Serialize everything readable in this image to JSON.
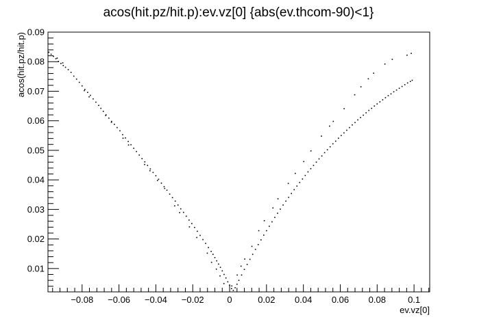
{
  "chart_data": {
    "type": "scatter",
    "title": "acos(hit.pz/hit.p):ev.vz[0] {abs(ev.thcom-90)<1}",
    "xlabel": "ev.vz[0]",
    "ylabel": "acos(hit.pz/hit.p)",
    "xlim": [
      -0.0985,
      0.1085
    ],
    "ylim": [
      0.0021,
      0.09
    ],
    "x_ticks": [
      -0.08,
      -0.06,
      -0.04,
      -0.02,
      0,
      0.02,
      0.04,
      0.06,
      0.08,
      0.1
    ],
    "x_tick_labels": [
      "−0.08",
      "−0.06",
      "−0.04",
      "−0.02",
      "0",
      "0.02",
      "0.04",
      "0.06",
      "0.08",
      "0.1"
    ],
    "y_ticks": [
      0.01,
      0.02,
      0.03,
      0.04,
      0.05,
      0.06,
      0.07,
      0.08,
      0.09
    ],
    "y_tick_labels": [
      "0.01",
      "0.02",
      "0.03",
      "0.04",
      "0.05",
      "0.06",
      "0.07",
      "0.08",
      "0.09"
    ],
    "grid": false,
    "legend": "none",
    "marker_color": "#000000",
    "series": [
      {
        "x": [
          -0.098,
          -0.0968,
          -0.0955,
          -0.0942,
          -0.0928,
          -0.0915,
          -0.0902,
          -0.089,
          -0.0875,
          -0.086,
          -0.0845,
          -0.083,
          -0.0815,
          -0.08,
          -0.0785,
          -0.077,
          -0.0755,
          -0.074,
          -0.0725,
          -0.071,
          -0.0698,
          -0.0685,
          -0.067,
          -0.0655,
          -0.064,
          -0.0625,
          -0.061,
          -0.0595,
          -0.058,
          -0.0565,
          -0.055,
          -0.0535,
          -0.052,
          -0.0505,
          -0.049,
          -0.0475,
          -0.046,
          -0.0445,
          -0.043,
          -0.0415,
          -0.04,
          -0.0385,
          -0.037,
          -0.0355,
          -0.034,
          -0.0325,
          -0.031,
          -0.0295,
          -0.028,
          -0.0265,
          -0.025,
          -0.0235,
          -0.022,
          -0.0205,
          -0.019,
          -0.0175,
          -0.016,
          -0.0145,
          -0.013,
          -0.0115,
          -0.01,
          -0.009,
          -0.008,
          -0.007,
          -0.006,
          -0.005,
          -0.004,
          -0.003,
          -0.002,
          -0.001,
          0.0,
          0.001,
          0.002,
          0.003,
          0.004,
          0.005,
          0.0065,
          0.008,
          0.0095,
          0.011,
          0.0125,
          0.014,
          0.0155,
          0.017,
          0.0185,
          0.02,
          0.0215,
          0.023,
          0.0245,
          0.026,
          0.0275,
          0.029,
          0.0305,
          0.032,
          0.0335,
          0.035,
          0.0365,
          0.038,
          0.0395,
          0.041,
          0.0425,
          0.044,
          0.0455,
          0.047,
          0.0485,
          0.05,
          0.0515,
          0.053,
          0.0545,
          0.056,
          0.0575,
          0.059,
          0.0605,
          0.062,
          0.0635,
          0.065,
          0.0665,
          0.068,
          0.0695,
          0.071,
          0.0725,
          0.074,
          0.0755,
          0.077,
          0.0785,
          0.08,
          0.0815,
          0.083,
          0.0845,
          0.086,
          0.0875,
          0.089,
          0.0905,
          0.092,
          0.0935,
          0.095,
          0.0965,
          0.098,
          0.099,
          -0.0935,
          -0.0905,
          -0.0788,
          -0.0762,
          -0.0672,
          -0.0641,
          -0.0578,
          -0.0548,
          -0.0461,
          -0.0432,
          -0.0391,
          -0.0352,
          -0.0298,
          -0.0271,
          -0.0218,
          -0.0178,
          -0.0121,
          -0.0098,
          -0.0072,
          -0.0052,
          -0.0031,
          0.0012,
          0.0041,
          0.0062,
          0.0082,
          0.0121,
          0.0158,
          0.0188,
          0.0235,
          0.0262,
          0.0318,
          0.0356,
          0.0402,
          0.0441,
          0.0498,
          0.0542,
          0.0562,
          0.0621,
          0.0678,
          0.0712,
          0.0752,
          0.0781,
          0.0842,
          0.0882,
          0.0962,
          0.0985
        ],
        "y": [
          0.0832,
          0.0825,
          0.0818,
          0.081,
          0.0801,
          0.0794,
          0.0787,
          0.0781,
          0.0773,
          0.0764,
          0.0751,
          0.0741,
          0.073,
          0.0718,
          0.0706,
          0.0696,
          0.0686,
          0.0674,
          0.0663,
          0.0652,
          0.0642,
          0.0632,
          0.062,
          0.0609,
          0.0598,
          0.0588,
          0.0577,
          0.0566,
          0.0553,
          0.0542,
          0.053,
          0.0519,
          0.0507,
          0.0496,
          0.0484,
          0.0472,
          0.0461,
          0.0449,
          0.0437,
          0.0425,
          0.0414,
          0.0402,
          0.0389,
          0.0377,
          0.0365,
          0.0352,
          0.034,
          0.0328,
          0.0315,
          0.0302,
          0.029,
          0.0277,
          0.0264,
          0.0252,
          0.0239,
          0.0226,
          0.0212,
          0.0198,
          0.0185,
          0.0171,
          0.0158,
          0.0148,
          0.0137,
          0.0126,
          0.0115,
          0.0104,
          0.0092,
          0.008,
          0.0068,
          0.0055,
          0.0043,
          0.0032,
          0.0026,
          0.0035,
          0.0047,
          0.006,
          0.0078,
          0.0097,
          0.0114,
          0.0131,
          0.0148,
          0.0165,
          0.0181,
          0.0197,
          0.0213,
          0.0228,
          0.0243,
          0.0258,
          0.0273,
          0.0287,
          0.0301,
          0.0315,
          0.0328,
          0.0341,
          0.0354,
          0.0367,
          0.0379,
          0.0391,
          0.0403,
          0.0415,
          0.0427,
          0.0438,
          0.0449,
          0.046,
          0.0471,
          0.0481,
          0.0492,
          0.0502,
          0.0512,
          0.0522,
          0.0531,
          0.0541,
          0.055,
          0.0559,
          0.0568,
          0.0577,
          0.0586,
          0.0594,
          0.0603,
          0.0611,
          0.0619,
          0.0627,
          0.0635,
          0.0642,
          0.065,
          0.0657,
          0.0664,
          0.0671,
          0.0678,
          0.0685,
          0.0691,
          0.0698,
          0.0704,
          0.071,
          0.0716,
          0.0722,
          0.0728,
          0.0733,
          0.0737,
          0.0812,
          0.0796,
          0.0702,
          0.0681,
          0.0618,
          0.0595,
          0.0541,
          0.0518,
          0.0452,
          0.0431,
          0.0398,
          0.0371,
          0.0312,
          0.0289,
          0.0241,
          0.0205,
          0.0152,
          0.0121,
          0.0098,
          0.0075,
          0.0049,
          0.0041,
          0.0078,
          0.0108,
          0.0132,
          0.0175,
          0.0228,
          0.0262,
          0.0305,
          0.0336,
          0.0388,
          0.0422,
          0.0462,
          0.0498,
          0.0548,
          0.0582,
          0.0598,
          0.0641,
          0.0688,
          0.0715,
          0.0742,
          0.0761,
          0.0792,
          0.0808,
          0.0822,
          0.0828
        ]
      }
    ]
  }
}
